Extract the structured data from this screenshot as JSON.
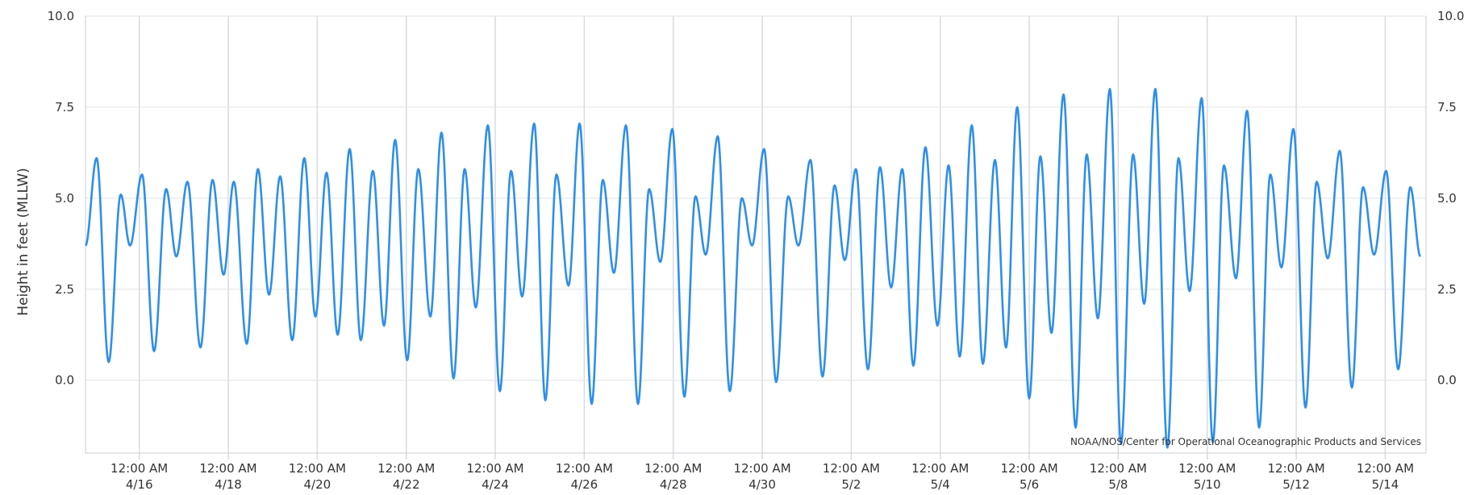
{
  "chart_data": {
    "type": "line",
    "ylabel": "Height in feet (MLLW)",
    "credit": "NOAA/NOS/Center for Operational Oceanographic Products and Services",
    "ylim": [
      -2.0,
      10.0
    ],
    "y_ticks": [
      0.0,
      2.5,
      5.0,
      7.5,
      10.0
    ],
    "y_tick_labels": [
      "0.0",
      "2.5",
      "5.0",
      "7.5",
      "10.0"
    ],
    "grid": true,
    "x_range": [
      "4/14 7:00 PM",
      "5/14 10:00 PM"
    ],
    "x_ticks": [
      {
        "x": "4/16 12:00 AM",
        "time": "12:00 AM",
        "date": "4/16"
      },
      {
        "x": "4/18 12:00 AM",
        "time": "12:00 AM",
        "date": "4/18"
      },
      {
        "x": "4/20 12:00 AM",
        "time": "12:00 AM",
        "date": "4/20"
      },
      {
        "x": "4/22 12:00 AM",
        "time": "12:00 AM",
        "date": "4/22"
      },
      {
        "x": "4/24 12:00 AM",
        "time": "12:00 AM",
        "date": "4/24"
      },
      {
        "x": "4/26 12:00 AM",
        "time": "12:00 AM",
        "date": "4/26"
      },
      {
        "x": "4/28 12:00 AM",
        "time": "12:00 AM",
        "date": "4/28"
      },
      {
        "x": "4/30 12:00 AM",
        "time": "12:00 AM",
        "date": "4/30"
      },
      {
        "x": "5/2 12:00 AM",
        "time": "12:00 AM",
        "date": "5/2"
      },
      {
        "x": "5/4 12:00 AM",
        "time": "12:00 AM",
        "date": "5/4"
      },
      {
        "x": "5/6 12:00 AM",
        "time": "12:00 AM",
        "date": "5/6"
      },
      {
        "x": "5/8 12:00 AM",
        "time": "12:00 AM",
        "date": "5/8"
      },
      {
        "x": "5/10 12:00 AM",
        "time": "12:00 AM",
        "date": "5/10"
      },
      {
        "x": "5/12 12:00 AM",
        "time": "12:00 AM",
        "date": "5/12"
      },
      {
        "x": "5/14 12:00 AM",
        "time": "12:00 AM",
        "date": "5/14"
      }
    ],
    "series": [
      {
        "color": "#2f8fe8",
        "points": [
          {
            "x": "4/14 7:00 PM",
            "y": 3.7
          },
          {
            "x": "4/15 1:00 AM",
            "y": 6.1
          },
          {
            "x": "4/15 7:30 AM",
            "y": 0.5
          },
          {
            "x": "4/15 2:00 PM",
            "y": 5.1
          },
          {
            "x": "4/15 7:00 PM",
            "y": 3.7
          },
          {
            "x": "4/16 1:30 AM",
            "y": 5.65
          },
          {
            "x": "4/16 8:00 AM",
            "y": 0.8
          },
          {
            "x": "4/16 2:30 PM",
            "y": 5.25
          },
          {
            "x": "4/16 8:00 PM",
            "y": 3.4
          },
          {
            "x": "4/17 2:00 AM",
            "y": 5.45
          },
          {
            "x": "4/17 9:00 AM",
            "y": 0.9
          },
          {
            "x": "4/17 3:30 PM",
            "y": 5.5
          },
          {
            "x": "4/17 9:30 PM",
            "y": 2.9
          },
          {
            "x": "4/18 3:00 AM",
            "y": 5.45
          },
          {
            "x": "4/18 10:00 AM",
            "y": 1.0
          },
          {
            "x": "4/18 4:00 PM",
            "y": 5.8
          },
          {
            "x": "4/18 10:00 PM",
            "y": 2.35
          },
          {
            "x": "4/19 4:00 AM",
            "y": 5.6
          },
          {
            "x": "4/19 10:30 AM",
            "y": 1.1
          },
          {
            "x": "4/19 5:00 PM",
            "y": 6.1
          },
          {
            "x": "4/19 11:00 PM",
            "y": 1.75
          },
          {
            "x": "4/20 5:00 AM",
            "y": 5.7
          },
          {
            "x": "4/20 11:00 AM",
            "y": 1.25
          },
          {
            "x": "4/20 5:30 PM",
            "y": 6.35
          },
          {
            "x": "4/20 11:30 PM",
            "y": 1.1
          },
          {
            "x": "4/21 6:00 AM",
            "y": 5.75
          },
          {
            "x": "4/21 12:00 PM",
            "y": 1.5
          },
          {
            "x": "4/21 6:00 PM",
            "y": 6.6
          },
          {
            "x": "4/22 12:30 AM",
            "y": 0.55
          },
          {
            "x": "4/22 6:30 AM",
            "y": 5.8
          },
          {
            "x": "4/22 1:00 PM",
            "y": 1.75
          },
          {
            "x": "4/22 7:00 PM",
            "y": 6.8
          },
          {
            "x": "4/23 1:30 AM",
            "y": 0.05
          },
          {
            "x": "4/23 7:30 AM",
            "y": 5.8
          },
          {
            "x": "4/23 1:30 PM",
            "y": 2.0
          },
          {
            "x": "4/23 8:00 PM",
            "y": 7.0
          },
          {
            "x": "4/24 2:30 AM",
            "y": -0.3
          },
          {
            "x": "4/24 8:30 AM",
            "y": 5.75
          },
          {
            "x": "4/24 2:30 PM",
            "y": 2.3
          },
          {
            "x": "4/24 9:00 PM",
            "y": 7.05
          },
          {
            "x": "4/25 3:00 AM",
            "y": -0.55
          },
          {
            "x": "4/25 9:00 AM",
            "y": 5.65
          },
          {
            "x": "4/25 3:30 PM",
            "y": 2.6
          },
          {
            "x": "4/25 9:30 PM",
            "y": 7.05
          },
          {
            "x": "4/26 4:00 AM",
            "y": -0.65
          },
          {
            "x": "4/26 10:00 AM",
            "y": 5.5
          },
          {
            "x": "4/26 4:00 PM",
            "y": 2.95
          },
          {
            "x": "4/26 10:30 PM",
            "y": 7.0
          },
          {
            "x": "4/27 5:00 AM",
            "y": -0.65
          },
          {
            "x": "4/27 11:00 AM",
            "y": 5.25
          },
          {
            "x": "4/27 5:00 PM",
            "y": 3.25
          },
          {
            "x": "4/27 11:30 PM",
            "y": 6.9
          },
          {
            "x": "4/28 6:00 AM",
            "y": -0.45
          },
          {
            "x": "4/28 12:00 PM",
            "y": 5.05
          },
          {
            "x": "4/28 5:30 PM",
            "y": 3.45
          },
          {
            "x": "4/29 12:00 AM",
            "y": 6.7
          },
          {
            "x": "4/29 6:30 AM",
            "y": -0.3
          },
          {
            "x": "4/29 1:00 PM",
            "y": 5.0
          },
          {
            "x": "4/29 6:30 PM",
            "y": 3.7
          },
          {
            "x": "4/30 1:00 AM",
            "y": 6.35
          },
          {
            "x": "4/30 7:30 AM",
            "y": -0.05
          },
          {
            "x": "4/30 2:00 PM",
            "y": 5.05
          },
          {
            "x": "4/30 7:30 PM",
            "y": 3.7
          },
          {
            "x": "5/1 2:00 AM",
            "y": 6.05
          },
          {
            "x": "5/1 8:30 AM",
            "y": 0.1
          },
          {
            "x": "5/1 3:00 PM",
            "y": 5.35
          },
          {
            "x": "5/1 8:30 PM",
            "y": 3.3
          },
          {
            "x": "5/2 2:30 AM",
            "y": 5.8
          },
          {
            "x": "5/2 9:00 AM",
            "y": 0.3
          },
          {
            "x": "5/2 3:30 PM",
            "y": 5.85
          },
          {
            "x": "5/2 9:30 PM",
            "y": 2.55
          },
          {
            "x": "5/3 3:30 AM",
            "y": 5.8
          },
          {
            "x": "5/3 9:30 AM",
            "y": 0.4
          },
          {
            "x": "5/3 4:00 PM",
            "y": 6.4
          },
          {
            "x": "5/3 10:30 PM",
            "y": 1.5
          },
          {
            "x": "5/4 4:30 AM",
            "y": 5.9
          },
          {
            "x": "5/4 10:30 AM",
            "y": 0.65
          },
          {
            "x": "5/4 5:00 PM",
            "y": 7.0
          },
          {
            "x": "5/4 11:00 PM",
            "y": 0.45
          },
          {
            "x": "5/5 5:30 AM",
            "y": 6.05
          },
          {
            "x": "5/5 11:30 AM",
            "y": 0.9
          },
          {
            "x": "5/5 5:30 PM",
            "y": 7.5
          },
          {
            "x": "5/6 12:00 AM",
            "y": -0.5
          },
          {
            "x": "5/6 6:00 AM",
            "y": 6.15
          },
          {
            "x": "5/6 12:00 PM",
            "y": 1.3
          },
          {
            "x": "5/6 6:30 PM",
            "y": 7.85
          },
          {
            "x": "5/7 1:00 AM",
            "y": -1.3
          },
          {
            "x": "5/7 7:00 AM",
            "y": 6.2
          },
          {
            "x": "5/7 1:00 PM",
            "y": 1.7
          },
          {
            "x": "5/7 7:30 PM",
            "y": 8.0
          },
          {
            "x": "5/8 1:30 AM",
            "y": -1.75
          },
          {
            "x": "5/8 8:00 AM",
            "y": 6.2
          },
          {
            "x": "5/8 2:00 PM",
            "y": 2.1
          },
          {
            "x": "5/8 8:00 PM",
            "y": 8.0
          },
          {
            "x": "5/9 2:30 AM",
            "y": -1.85
          },
          {
            "x": "5/9 8:30 AM",
            "y": 6.1
          },
          {
            "x": "5/9 2:30 PM",
            "y": 2.45
          },
          {
            "x": "5/9 9:00 PM",
            "y": 7.75
          },
          {
            "x": "5/10 3:00 AM",
            "y": -1.7
          },
          {
            "x": "5/10 9:00 AM",
            "y": 5.9
          },
          {
            "x": "5/10 3:30 PM",
            "y": 2.8
          },
          {
            "x": "5/10 9:30 PM",
            "y": 7.4
          },
          {
            "x": "5/11 4:00 AM",
            "y": -1.3
          },
          {
            "x": "5/11 10:00 AM",
            "y": 5.65
          },
          {
            "x": "5/11 4:00 PM",
            "y": 3.1
          },
          {
            "x": "5/11 10:30 PM",
            "y": 6.9
          },
          {
            "x": "5/12 5:00 AM",
            "y": -0.75
          },
          {
            "x": "5/12 11:00 AM",
            "y": 5.45
          },
          {
            "x": "5/12 5:00 PM",
            "y": 3.35
          },
          {
            "x": "5/12 11:30 PM",
            "y": 6.3
          },
          {
            "x": "5/13 6:00 AM",
            "y": -0.2
          },
          {
            "x": "5/13 12:00 PM",
            "y": 5.3
          },
          {
            "x": "5/13 6:00 PM",
            "y": 3.45
          },
          {
            "x": "5/14 12:30 AM",
            "y": 5.75
          },
          {
            "x": "5/14 7:00 AM",
            "y": 0.3
          },
          {
            "x": "5/14 1:30 PM",
            "y": 5.3
          },
          {
            "x": "5/14 7:00 PM",
            "y": 3.4
          }
        ]
      }
    ]
  }
}
